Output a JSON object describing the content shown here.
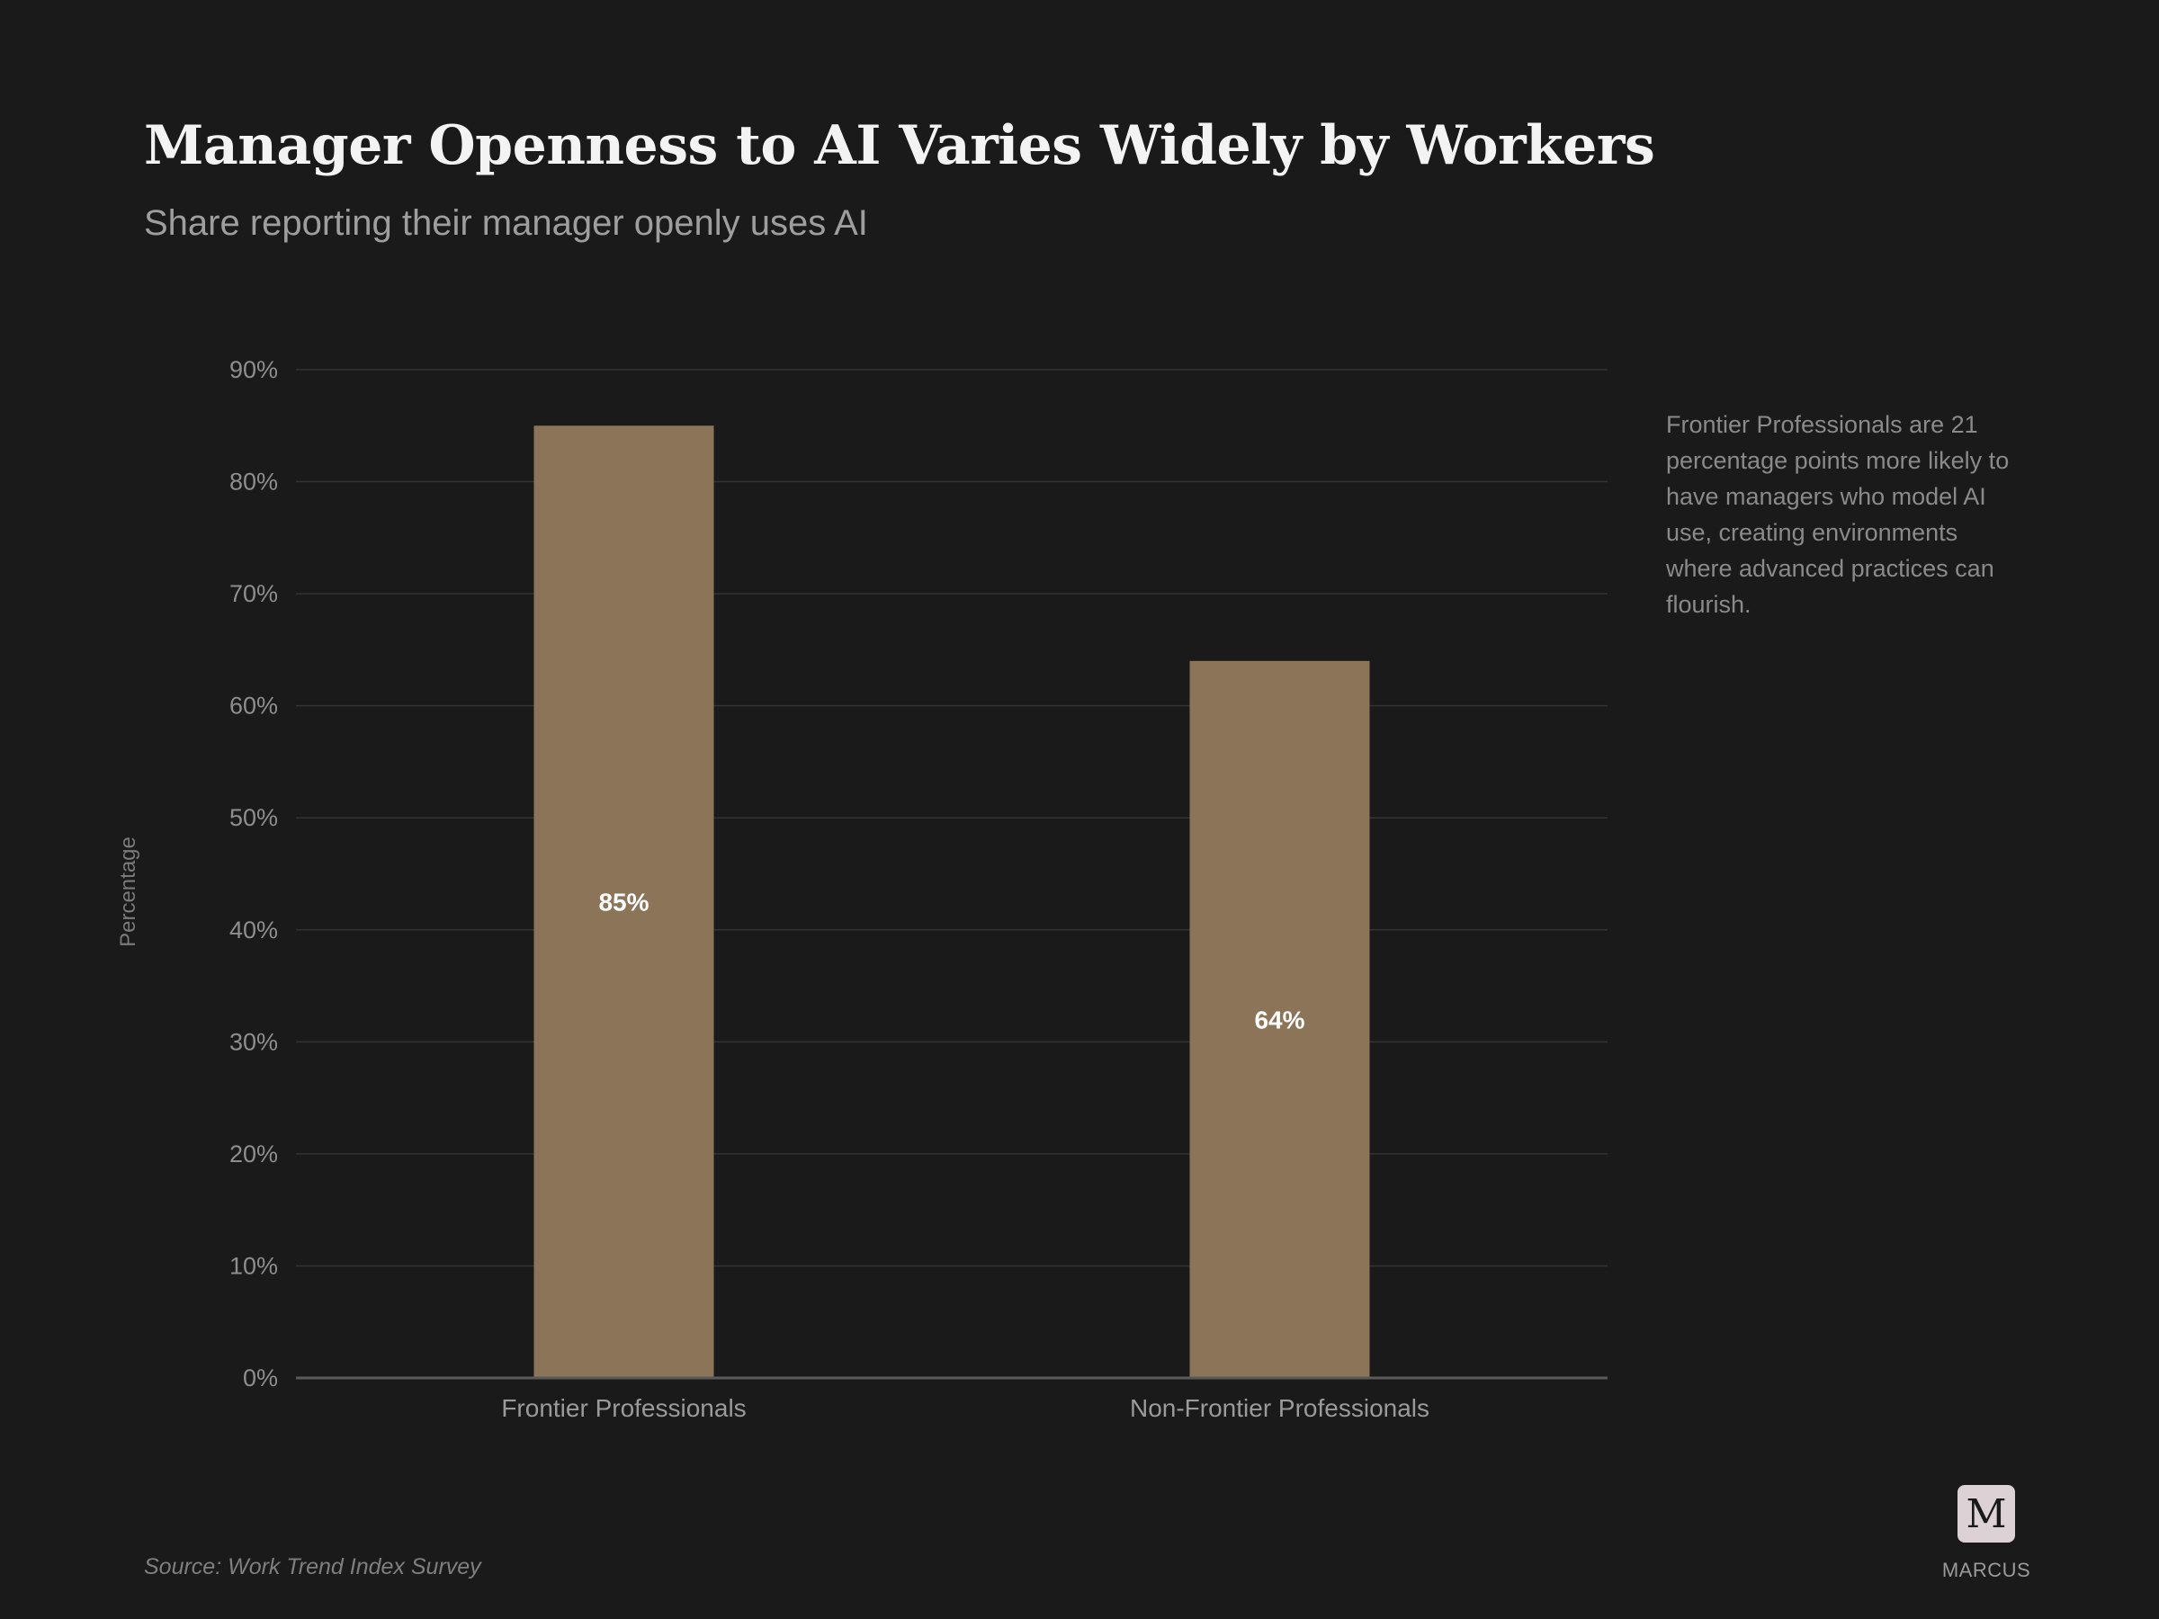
{
  "header": {
    "title": "Manager Openness to AI Varies Widely by Workers",
    "subtitle": "Share reporting their manager openly uses AI"
  },
  "annotation": {
    "text": "Frontier Professionals are 21 percentage points more likely to have managers who model AI use, creating environments where advanced practices can flourish."
  },
  "footer": {
    "source": "Source: Work Trend Index Survey",
    "logo_letter": "M",
    "logo_name": "MARCUS"
  },
  "colors": {
    "background": "#1a1a1a",
    "bar": "#8b7457",
    "logo_bg": "#dcd2d5"
  },
  "chart_data": {
    "type": "bar",
    "title": "Manager Openness to AI Varies Widely by Workers",
    "subtitle": "Share reporting their manager openly uses AI",
    "categories": [
      "Frontier Professionals",
      "Non-Frontier Professionals"
    ],
    "values": [
      85,
      64
    ],
    "value_labels": [
      "85%",
      "64%"
    ],
    "xlabel": "",
    "ylabel": "Percentage",
    "ylim": [
      0,
      90
    ],
    "yticks": [
      0,
      10,
      20,
      30,
      40,
      50,
      60,
      70,
      80,
      90
    ],
    "ytick_labels": [
      "0%",
      "10%",
      "20%",
      "30%",
      "40%",
      "50%",
      "60%",
      "70%",
      "80%",
      "90%"
    ],
    "grid": true,
    "legend": "none"
  }
}
